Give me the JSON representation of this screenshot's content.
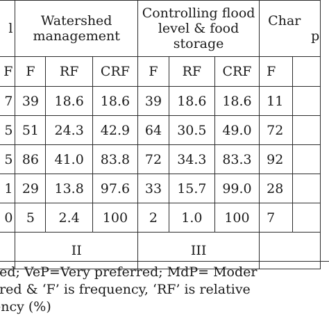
{
  "table": {
    "header": {
      "stub_fragment": "l",
      "groups": [
        {
          "label": "Watershed management"
        },
        {
          "label": "Controlling flood level & food storage"
        },
        {
          "label": "Char ... p"
        }
      ],
      "group3_line1": "Char",
      "group3_line2": "p"
    },
    "subheader": {
      "stub_fragment": "F",
      "watershed": [
        "F",
        "RF",
        "CRF"
      ],
      "flood": [
        "F",
        "RF",
        "CRF"
      ],
      "char": [
        "F"
      ]
    },
    "rows": [
      {
        "stub": "7",
        "watershed": [
          "39",
          "18.6",
          "18.6"
        ],
        "flood": [
          "39",
          "18.6",
          "18.6"
        ],
        "char": [
          "11"
        ]
      },
      {
        "stub": "5",
        "watershed": [
          "51",
          "24.3",
          "42.9"
        ],
        "flood": [
          "64",
          "30.5",
          "49.0"
        ],
        "char": [
          "72"
        ]
      },
      {
        "stub": "5",
        "watershed": [
          "86",
          "41.0",
          "83.8"
        ],
        "flood": [
          "72",
          "34.3",
          "83.3"
        ],
        "char": [
          "92"
        ]
      },
      {
        "stub": "1",
        "watershed": [
          "29",
          "13.8",
          "97.6"
        ],
        "flood": [
          "33",
          "15.7",
          "99.0"
        ],
        "char": [
          "28"
        ]
      },
      {
        "stub": "0",
        "watershed": [
          "5",
          "2.4",
          "100"
        ],
        "flood": [
          "2",
          "1.0",
          "100"
        ],
        "char": [
          "7"
        ]
      }
    ],
    "rank_row": {
      "watershed": "II",
      "flood": "III"
    }
  },
  "footnote": {
    "line1": "red; VeP=Very preferred; MdP= Moder",
    "line2": "rred & ‘F’ is frequency, ‘RF’ is relative",
    "line3": "ency (%)"
  }
}
